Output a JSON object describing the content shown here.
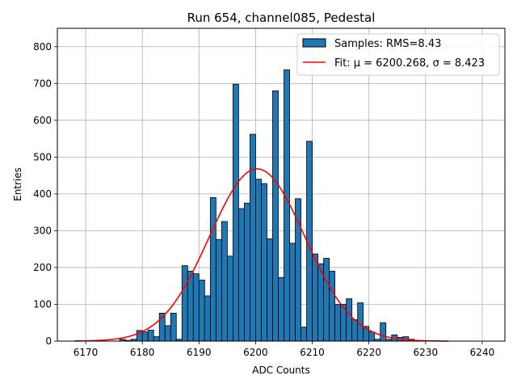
{
  "chart_data": {
    "type": "bar",
    "title": "Run 654, channel085, Pedestal",
    "xlabel": "ADC Counts",
    "ylabel": "Entries",
    "xlim": [
      6165,
      6244
    ],
    "ylim": [
      0,
      850
    ],
    "xticks": [
      6170,
      6180,
      6190,
      6200,
      6210,
      6220,
      6230,
      6240
    ],
    "yticks": [
      0,
      100,
      200,
      300,
      400,
      500,
      600,
      700,
      800
    ],
    "grid": true,
    "legend_position": "top-right",
    "series": [
      {
        "name": "Samples: RMS=8.43",
        "type": "histogram",
        "color": "#1f77b4",
        "edgecolor": "#000000",
        "bin_width": 1,
        "x_start": 6168,
        "values": [
          0,
          0,
          0,
          0,
          0,
          0,
          0,
          0,
          5,
          2,
          5,
          29,
          25,
          30,
          12,
          76,
          42,
          76,
          5,
          205,
          190,
          183,
          166,
          123,
          390,
          276,
          325,
          231,
          698,
          360,
          375,
          562,
          440,
          428,
          278,
          680,
          173,
          737,
          266,
          387,
          38,
          543,
          237,
          210,
          225,
          190,
          100,
          100,
          115,
          58,
          104,
          40,
          25,
          5,
          50,
          5,
          17,
          10,
          12,
          5,
          0,
          0,
          0,
          0,
          0,
          0,
          0
        ]
      },
      {
        "name": "Fit: μ = 6200.268, σ = 8.423",
        "type": "line",
        "color": "#ff0000",
        "mu": 6200.268,
        "sigma": 8.423,
        "peak": 468,
        "x_range": [
          6168,
          6234
        ]
      }
    ]
  }
}
